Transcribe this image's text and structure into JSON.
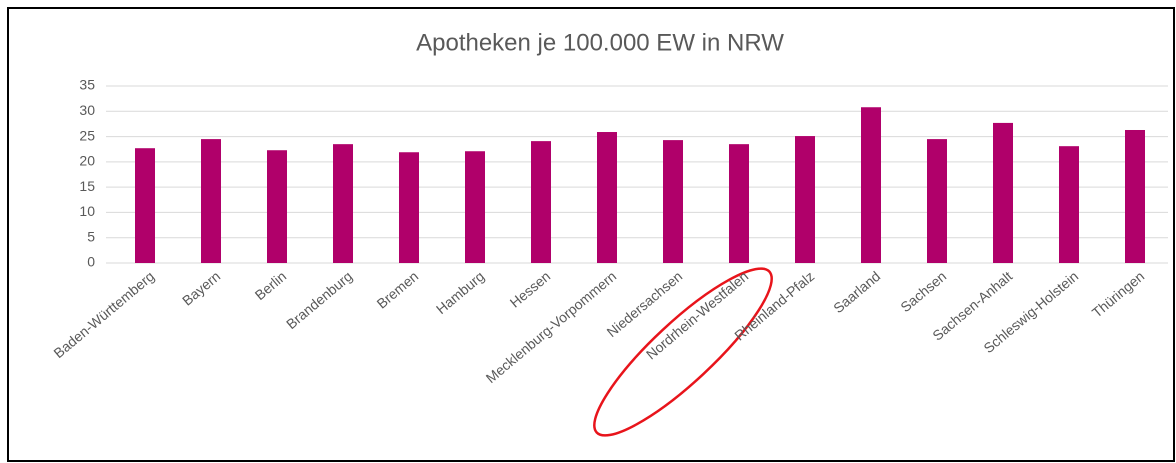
{
  "chart_data": {
    "type": "bar",
    "title": "Apotheken je 100.000 EW in NRW",
    "categories": [
      "Baden-Württemberg",
      "Bayern",
      "Berlin",
      "Brandenburg",
      "Bremen",
      "Hamburg",
      "Hessen",
      "Mecklenburg-Vorpommern",
      "Niedersachsen",
      "Nordrhein-Westfalen",
      "Rheinland-Pfalz",
      "Saarland",
      "Sachsen",
      "Sachsen-Anhalt",
      "Schleswig-Holstein",
      "Thüringen"
    ],
    "values": [
      22.7,
      24.5,
      22.3,
      23.5,
      21.9,
      22.1,
      24.1,
      25.9,
      24.3,
      23.5,
      25.1,
      30.8,
      24.5,
      27.7,
      23.1,
      26.3
    ],
    "color": "#b0006a",
    "ylim": [
      0,
      35
    ],
    "yticks": [
      0,
      5,
      10,
      15,
      20,
      25,
      30,
      35
    ],
    "grid": true
  }
}
